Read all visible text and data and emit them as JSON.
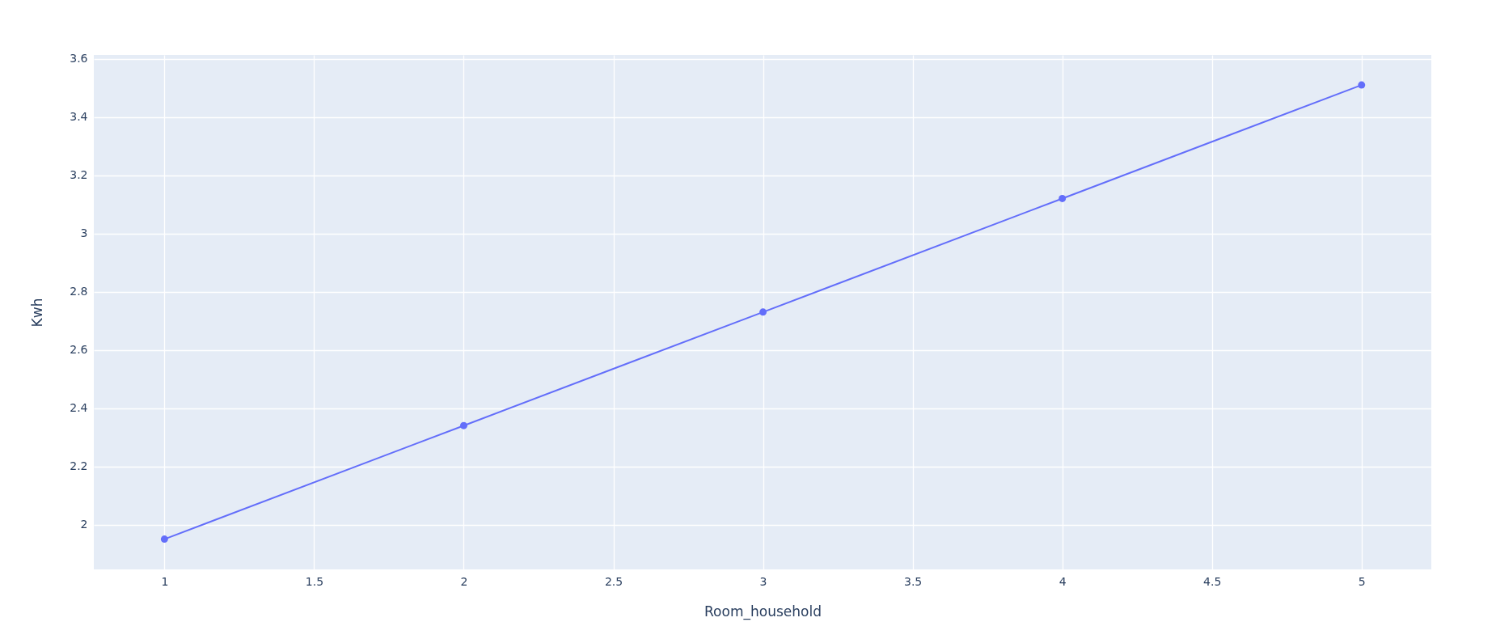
{
  "chart_data": {
    "type": "line",
    "xlabel": "Room_household",
    "ylabel": "Kwh",
    "x": [
      1,
      2,
      3,
      4,
      5
    ],
    "series": [
      {
        "color": "#636efa",
        "values": [
          1.95,
          2.34,
          2.73,
          3.12,
          3.51
        ]
      }
    ],
    "xlim": [
      0.764,
      5.233
    ],
    "xticks": [
      1,
      1.5,
      2,
      2.5,
      3,
      3.5,
      4,
      4.5,
      5
    ],
    "ylim": [
      1.846,
      3.613
    ],
    "yticks": [
      2,
      2.2,
      2.4,
      2.6,
      2.8,
      3,
      3.2,
      3.4,
      3.6
    ],
    "grid": true,
    "marker": "circle",
    "line_style": "solid"
  }
}
